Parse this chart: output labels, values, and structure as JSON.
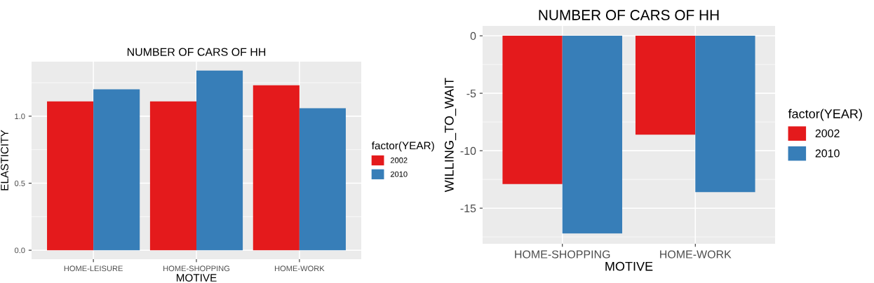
{
  "chart_data": [
    {
      "type": "bar",
      "title": "NUMBER OF CARS OF HH",
      "xlabel": "MOTIVE",
      "ylabel": "ELASTICITY",
      "legend_title": "factor(YEAR)",
      "legend": "right",
      "grid": true,
      "categories": [
        "HOME-LEISURE",
        "HOME-SHOPPING",
        "HOME-WORK"
      ],
      "series": [
        {
          "name": "2002",
          "color": "#e41a1c",
          "values": [
            1.11,
            1.11,
            1.23
          ]
        },
        {
          "name": "2010",
          "color": "#377eb8",
          "values": [
            1.2,
            1.34,
            1.06
          ]
        }
      ],
      "ylim": [
        -0.067,
        1.407
      ],
      "yticks": [
        {
          "value": 0,
          "label": "0.0"
        },
        {
          "value": 0.5,
          "label": "0.5"
        },
        {
          "value": 1,
          "label": "1.0"
        }
      ]
    },
    {
      "type": "bar",
      "title": "NUMBER OF CARS OF HH",
      "xlabel": "MOTIVE",
      "ylabel": "WILLING_TO_WAIT",
      "legend_title": "factor(YEAR)",
      "legend": "right",
      "grid": true,
      "categories": [
        "HOME-SHOPPING",
        "HOME-WORK"
      ],
      "series": [
        {
          "name": "2002",
          "color": "#e41a1c",
          "values": [
            -12.9,
            -8.6
          ]
        },
        {
          "name": "2010",
          "color": "#377eb8",
          "values": [
            -17.2,
            -13.6
          ]
        }
      ],
      "ylim": [
        -18.1,
        0.86
      ],
      "yticks": [
        {
          "value": -15,
          "label": "-15"
        },
        {
          "value": -10,
          "label": "-10"
        },
        {
          "value": -5,
          "label": "-5"
        },
        0
      ]
    }
  ]
}
